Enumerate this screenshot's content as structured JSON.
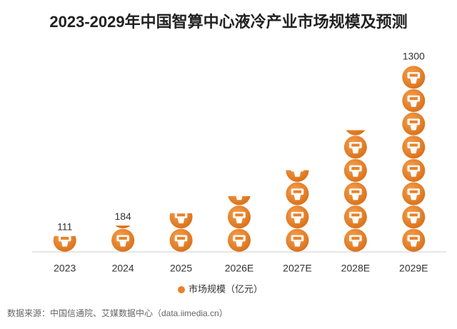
{
  "chart_data": {
    "type": "pictograph",
    "title": "2023-2029年中国智算中心液冷产业市场规模及预测",
    "categories": [
      "2023",
      "2024",
      "2025",
      "2026E",
      "2027E",
      "2028E",
      "2029E"
    ],
    "series": [
      {
        "name": "市场规模（亿元）",
        "color": "#e8822a",
        "values": [
          111,
          184,
          270,
          390,
          570,
          850,
          1300
        ],
        "value_labels": [
          "111",
          "184",
          null,
          null,
          null,
          null,
          "1300"
        ]
      }
    ],
    "source": "数据来源：中国信通院、艾媒数据中心（data.iimedia.cn）"
  }
}
